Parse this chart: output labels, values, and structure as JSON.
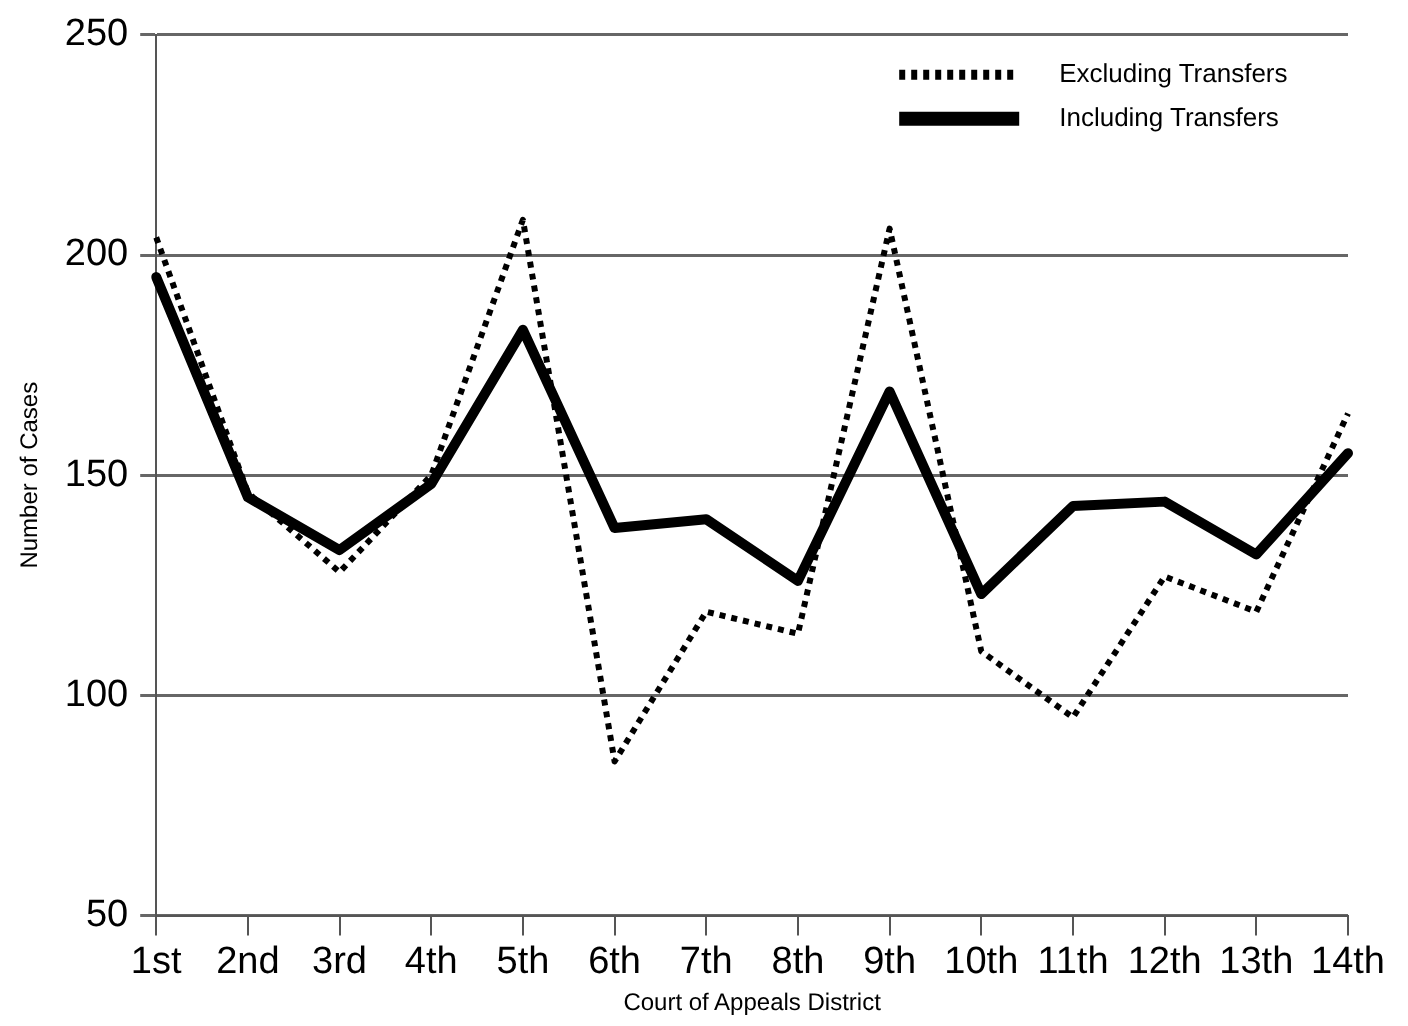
{
  "chart_data": {
    "type": "line",
    "xlabel": "Court of Appeals District",
    "ylabel": "Number of Cases",
    "categories": [
      "1st",
      "2nd",
      "3rd",
      "4th",
      "5th",
      "6th",
      "7th",
      "8th",
      "9th",
      "10th",
      "11th",
      "12th",
      "13th",
      "14th"
    ],
    "series": [
      {
        "name": "Excluding Transfers",
        "color": "#000000",
        "line_style": "dotted",
        "values": [
          204,
          146,
          128,
          150,
          208,
          85,
          119,
          114,
          206,
          110,
          95,
          127,
          119,
          164
        ]
      },
      {
        "name": "Including Transfers",
        "color": "#000000",
        "line_style": "solid",
        "values": [
          195,
          145,
          133,
          148,
          183,
          138,
          140,
          126,
          169,
          123,
          143,
          144,
          132,
          155
        ]
      }
    ],
    "ylim": [
      50,
      250
    ],
    "yticks": [
      50,
      100,
      150,
      200,
      250
    ],
    "grid": "y",
    "legend": "top right",
    "marker": "none"
  }
}
